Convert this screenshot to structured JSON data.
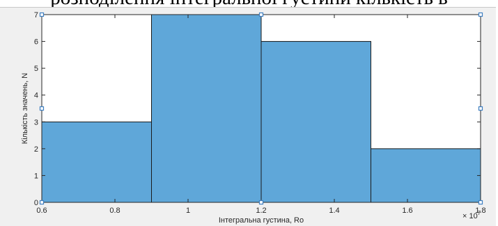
{
  "header_text": "розподілення інтегральної густини кількість в",
  "chart_data": {
    "type": "bar",
    "histogram": true,
    "bin_edges": [
      6000000,
      9000000,
      12000000,
      15000000,
      18000000
    ],
    "values": [
      3,
      7,
      6,
      2
    ],
    "xlabel": "Інтегральна густина, Ro",
    "ylabel": "Кількість значень, N",
    "x_ticks": [
      0.6,
      0.8,
      1,
      1.2,
      1.4,
      1.6,
      1.8
    ],
    "x_tick_labels": [
      "0.6",
      "0.8",
      "1",
      "1.2",
      "1.4",
      "1.6",
      "1.8"
    ],
    "x_exponent": "× 10",
    "x_exponent_power": "7",
    "y_ticks": [
      0,
      1,
      2,
      3,
      4,
      5,
      6,
      7
    ],
    "y_tick_labels": [
      "0",
      "1",
      "2",
      "3",
      "4",
      "5",
      "6",
      "7"
    ],
    "xlim": [
      6000000,
      18000000
    ],
    "ylim": [
      0,
      7
    ],
    "grid": false,
    "bar_color": "#5fa7d9",
    "edge_color": "#1a1a1a"
  }
}
